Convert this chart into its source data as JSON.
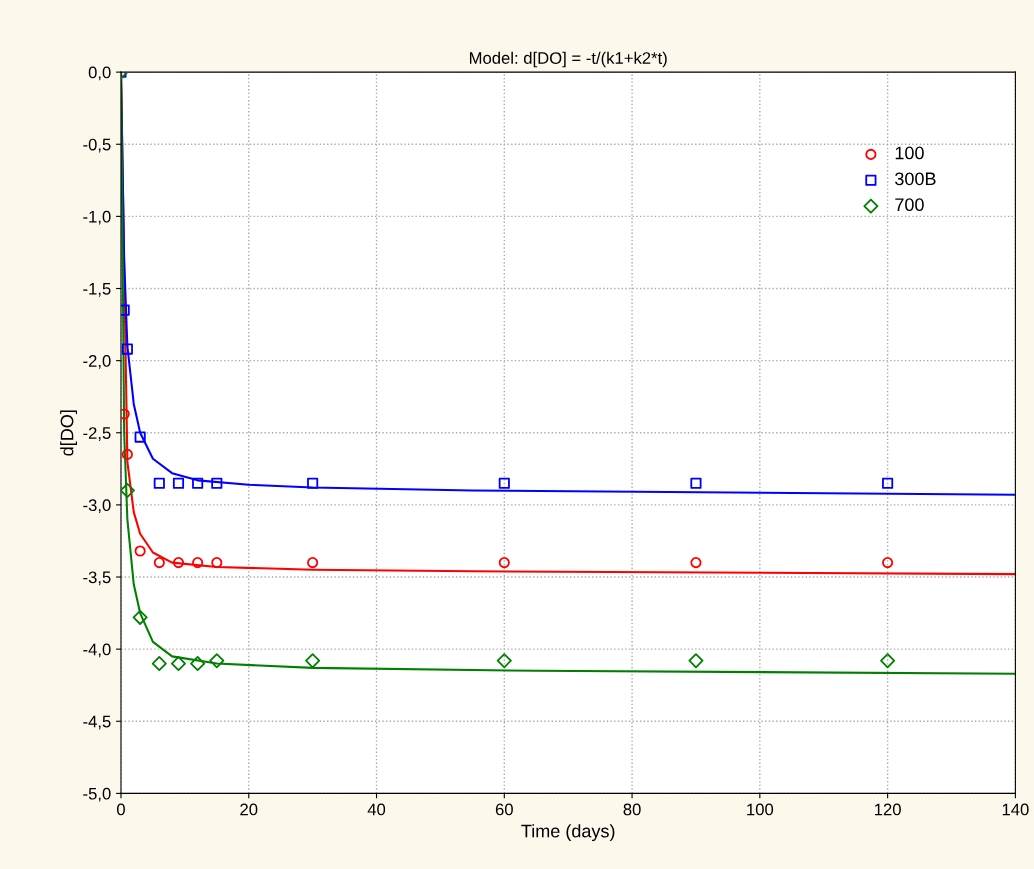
{
  "chart_data": {
    "type": "scatter",
    "title": "Model: d[DO] = -t/(k1+k2*t)",
    "xlabel": "Time (days)",
    "ylabel": "d[DO]",
    "xlim": [
      0,
      140
    ],
    "xticks": [
      0,
      20,
      40,
      60,
      80,
      100,
      120,
      140
    ],
    "ylim": [
      -5,
      0
    ],
    "yticks": [
      {
        "value": -5,
        "label": "-5,0"
      },
      {
        "value": -4.5,
        "label": "-4,5"
      },
      {
        "value": -4,
        "label": "-4,0"
      },
      {
        "value": -3.5,
        "label": "-3,5"
      },
      {
        "value": -3,
        "label": "-3,0"
      },
      {
        "value": -2.5,
        "label": "-2,5"
      },
      {
        "value": -2,
        "label": "-2,0"
      },
      {
        "value": -1.5,
        "label": "-1,5"
      },
      {
        "value": -1,
        "label": "-1,0"
      },
      {
        "value": -0.5,
        "label": "-0,5"
      },
      {
        "value": 0,
        "label": "0,0"
      }
    ],
    "grid": true,
    "legend": "top right",
    "series": [
      {
        "name": "100",
        "color": "#ff0000",
        "marker": "circle",
        "x": [
          0,
          0.5,
          1,
          3,
          6,
          9,
          12,
          15,
          30,
          60,
          90,
          120
        ],
        "values": [
          0,
          -2.37,
          -2.65,
          -3.32,
          -3.4,
          -3.4,
          -3.4,
          -3.4,
          -3.4,
          -3.4,
          -3.4,
          -3.4
        ]
      },
      {
        "name": "300B",
        "color": "#0000ff",
        "marker": "square",
        "x": [
          0,
          0.5,
          1,
          3,
          6,
          9,
          12,
          15,
          30,
          60,
          90,
          120
        ],
        "values": [
          0,
          -1.65,
          -1.92,
          -2.53,
          -2.85,
          -2.85,
          -2.85,
          -2.85,
          -2.85,
          -2.85,
          -2.85,
          -2.85
        ]
      },
      {
        "name": "700",
        "color": "#008000",
        "marker": "diamond",
        "x": [
          0,
          1,
          3,
          6,
          9,
          12,
          15,
          30,
          60,
          90,
          120
        ],
        "values": [
          0,
          -2.9,
          -3.78,
          -4.1,
          -4.1,
          -4.1,
          -4.08,
          -4.08,
          -4.08,
          -4.08,
          -4.08
        ]
      },
      {
        "type": "line",
        "color": "#ff0000",
        "x": [
          0,
          1,
          2,
          3,
          5,
          8,
          15,
          30,
          55,
          140
        ],
        "values": [
          0,
          -2.7,
          -3.05,
          -3.2,
          -3.33,
          -3.4,
          -3.43,
          -3.45,
          -3.46,
          -3.48
        ]
      },
      {
        "type": "line",
        "color": "#0000ff",
        "x": [
          0,
          0.5,
          1,
          2,
          3,
          5,
          8,
          12,
          20,
          30,
          55,
          140
        ],
        "values": [
          0,
          -1.3,
          -1.9,
          -2.3,
          -2.5,
          -2.68,
          -2.78,
          -2.83,
          -2.86,
          -2.88,
          -2.9,
          -2.93
        ]
      },
      {
        "type": "line",
        "color": "#008000",
        "x": [
          0,
          0.5,
          1,
          2,
          3,
          5,
          8,
          15,
          30,
          65,
          140
        ],
        "values": [
          0,
          -2.5,
          -3.1,
          -3.55,
          -3.75,
          -3.95,
          -4.05,
          -4.1,
          -4.13,
          -4.15,
          -4.17
        ]
      }
    ]
  }
}
